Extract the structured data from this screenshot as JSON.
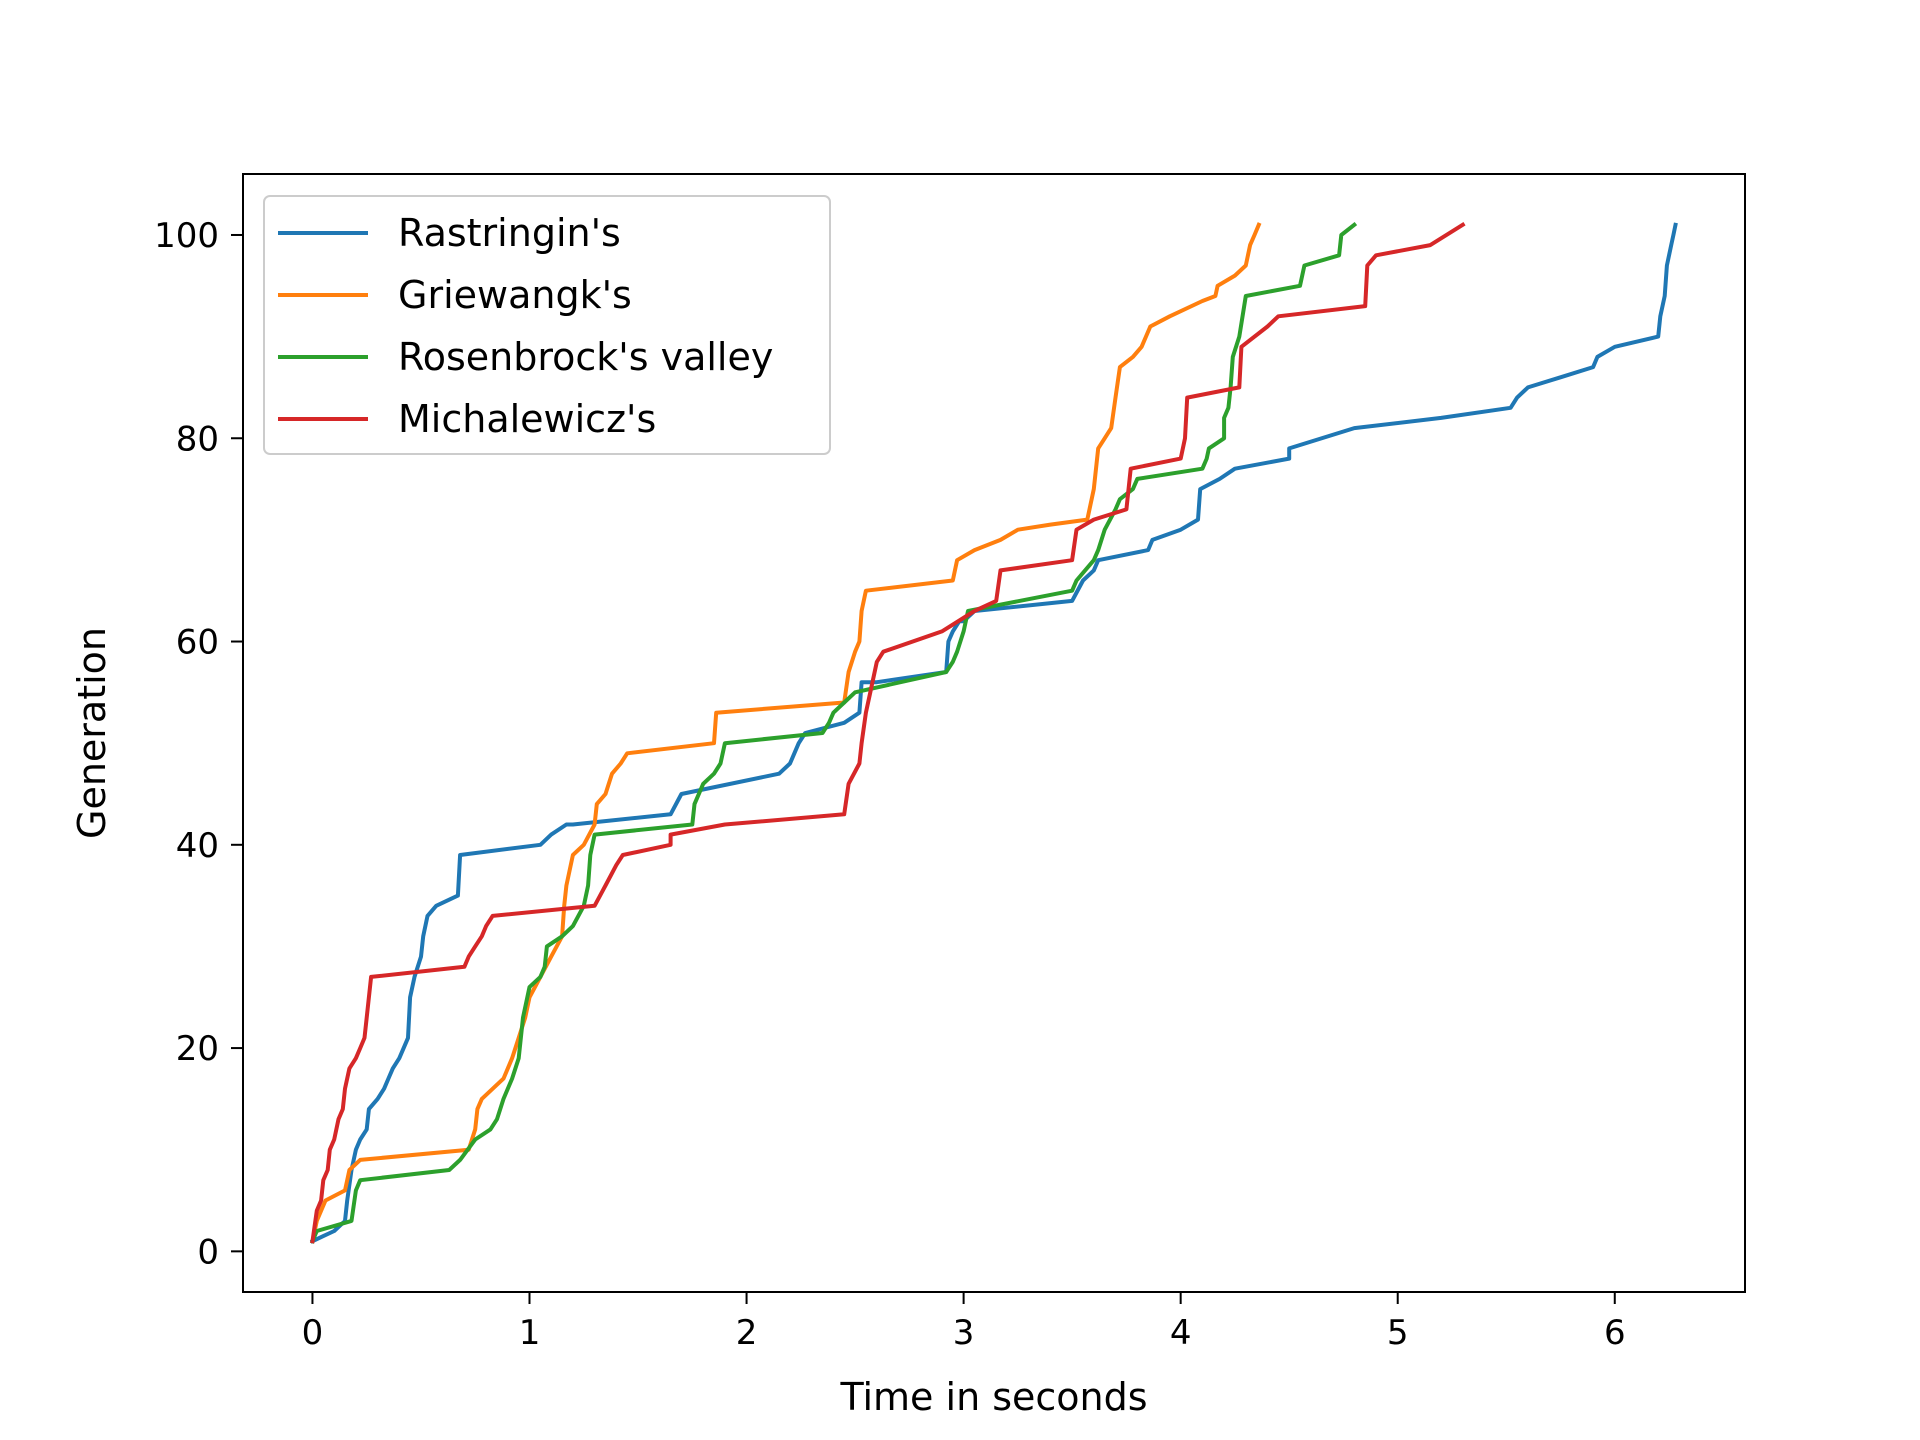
{
  "chart_data": {
    "type": "line",
    "title": "",
    "xlabel": "Time in seconds",
    "ylabel": "Generation",
    "xlim": [
      -0.32,
      6.6
    ],
    "ylim": [
      -4,
      106
    ],
    "xticks": [
      "0",
      "1",
      "2",
      "3",
      "4",
      "5",
      "6"
    ],
    "yticks": [
      "0",
      "20",
      "40",
      "60",
      "80",
      "100"
    ],
    "grid": false,
    "legend_position": "top-left",
    "series": [
      {
        "name": "Rastringin's",
        "color": "#1f77b4",
        "points": [
          [
            0.0,
            1
          ],
          [
            0.05,
            1.5
          ],
          [
            0.1,
            2
          ],
          [
            0.15,
            3
          ],
          [
            0.16,
            5
          ],
          [
            0.18,
            8
          ],
          [
            0.2,
            10
          ],
          [
            0.22,
            11
          ],
          [
            0.25,
            12
          ],
          [
            0.26,
            14
          ],
          [
            0.3,
            15
          ],
          [
            0.33,
            16
          ],
          [
            0.35,
            17
          ],
          [
            0.37,
            18
          ],
          [
            0.4,
            19
          ],
          [
            0.44,
            21
          ],
          [
            0.45,
            25
          ],
          [
            0.47,
            27
          ],
          [
            0.5,
            29
          ],
          [
            0.51,
            31
          ],
          [
            0.53,
            33
          ],
          [
            0.57,
            34
          ],
          [
            0.67,
            35
          ],
          [
            0.68,
            39
          ],
          [
            1.05,
            40
          ],
          [
            1.1,
            41
          ],
          [
            1.17,
            42
          ],
          [
            1.2,
            42
          ],
          [
            1.65,
            43
          ],
          [
            1.7,
            45
          ],
          [
            2.15,
            47
          ],
          [
            2.2,
            48
          ],
          [
            2.24,
            50
          ],
          [
            2.27,
            51
          ],
          [
            2.45,
            52
          ],
          [
            2.52,
            53
          ],
          [
            2.53,
            56
          ],
          [
            2.6,
            56
          ],
          [
            2.92,
            57
          ],
          [
            2.93,
            60
          ],
          [
            2.95,
            61
          ],
          [
            2.98,
            62
          ],
          [
            3.0,
            62
          ],
          [
            3.05,
            63
          ],
          [
            3.5,
            64
          ],
          [
            3.55,
            66
          ],
          [
            3.6,
            67
          ],
          [
            3.62,
            68
          ],
          [
            3.85,
            69
          ],
          [
            3.87,
            70
          ],
          [
            4.0,
            71
          ],
          [
            4.08,
            72
          ],
          [
            4.09,
            75
          ],
          [
            4.18,
            76
          ],
          [
            4.25,
            77
          ],
          [
            4.5,
            78
          ],
          [
            4.5,
            79
          ],
          [
            4.8,
            81
          ],
          [
            5.2,
            82
          ],
          [
            5.52,
            83
          ],
          [
            5.55,
            84
          ],
          [
            5.6,
            85
          ],
          [
            5.75,
            86
          ],
          [
            5.9,
            87
          ],
          [
            5.92,
            88
          ],
          [
            6.0,
            89
          ],
          [
            6.2,
            90
          ],
          [
            6.21,
            92
          ],
          [
            6.23,
            94
          ],
          [
            6.24,
            97
          ],
          [
            6.26,
            99
          ],
          [
            6.27,
            100
          ],
          [
            6.28,
            101
          ]
        ]
      },
      {
        "name": "Griewangk's",
        "color": "#ff7f0e",
        "points": [
          [
            0.0,
            1
          ],
          [
            0.02,
            3
          ],
          [
            0.04,
            4
          ],
          [
            0.06,
            5
          ],
          [
            0.15,
            6
          ],
          [
            0.17,
            8
          ],
          [
            0.22,
            9
          ],
          [
            0.72,
            10
          ],
          [
            0.75,
            12
          ],
          [
            0.76,
            14
          ],
          [
            0.78,
            15
          ],
          [
            0.88,
            17
          ],
          [
            0.92,
            19
          ],
          [
            0.95,
            21
          ],
          [
            0.98,
            23
          ],
          [
            1.0,
            25
          ],
          [
            1.05,
            27
          ],
          [
            1.1,
            29
          ],
          [
            1.15,
            31
          ],
          [
            1.16,
            34
          ],
          [
            1.17,
            36
          ],
          [
            1.2,
            39
          ],
          [
            1.25,
            40
          ],
          [
            1.3,
            42
          ],
          [
            1.31,
            44
          ],
          [
            1.35,
            45
          ],
          [
            1.38,
            47
          ],
          [
            1.42,
            48
          ],
          [
            1.45,
            49
          ],
          [
            1.85,
            50
          ],
          [
            1.86,
            53
          ],
          [
            2.45,
            54
          ],
          [
            2.47,
            57
          ],
          [
            2.5,
            59
          ],
          [
            2.52,
            60
          ],
          [
            2.53,
            63
          ],
          [
            2.55,
            65
          ],
          [
            2.95,
            66
          ],
          [
            2.97,
            68
          ],
          [
            3.05,
            69
          ],
          [
            3.17,
            70
          ],
          [
            3.25,
            71
          ],
          [
            3.4,
            71.5
          ],
          [
            3.57,
            72
          ],
          [
            3.6,
            75
          ],
          [
            3.62,
            79
          ],
          [
            3.65,
            80
          ],
          [
            3.68,
            81
          ],
          [
            3.7,
            84
          ],
          [
            3.72,
            87
          ],
          [
            3.78,
            88
          ],
          [
            3.82,
            89
          ],
          [
            3.86,
            91
          ],
          [
            3.95,
            92
          ],
          [
            4.1,
            93.5
          ],
          [
            4.16,
            94
          ],
          [
            4.17,
            95
          ],
          [
            4.25,
            96
          ],
          [
            4.3,
            97
          ],
          [
            4.32,
            99
          ],
          [
            4.34,
            100
          ],
          [
            4.36,
            101
          ]
        ]
      },
      {
        "name": "Rosenbrock's valley",
        "color": "#2ca02c",
        "points": [
          [
            0.0,
            1
          ],
          [
            0.02,
            2
          ],
          [
            0.18,
            3
          ],
          [
            0.2,
            6
          ],
          [
            0.22,
            7
          ],
          [
            0.63,
            8
          ],
          [
            0.68,
            9
          ],
          [
            0.75,
            11
          ],
          [
            0.82,
            12
          ],
          [
            0.85,
            13
          ],
          [
            0.88,
            15
          ],
          [
            0.92,
            17
          ],
          [
            0.95,
            19
          ],
          [
            0.97,
            23
          ],
          [
            1.0,
            26
          ],
          [
            1.05,
            27
          ],
          [
            1.07,
            28
          ],
          [
            1.08,
            30
          ],
          [
            1.15,
            31
          ],
          [
            1.2,
            32
          ],
          [
            1.25,
            34
          ],
          [
            1.27,
            36
          ],
          [
            1.28,
            39
          ],
          [
            1.3,
            41
          ],
          [
            1.75,
            42
          ],
          [
            1.76,
            44
          ],
          [
            1.8,
            46
          ],
          [
            1.85,
            47
          ],
          [
            1.88,
            48
          ],
          [
            1.9,
            50
          ],
          [
            2.35,
            51
          ],
          [
            2.38,
            52
          ],
          [
            2.4,
            53
          ],
          [
            2.45,
            54
          ],
          [
            2.5,
            55
          ],
          [
            2.92,
            57
          ],
          [
            2.95,
            58
          ],
          [
            2.97,
            59
          ],
          [
            3.0,
            61
          ],
          [
            3.02,
            63
          ],
          [
            3.5,
            65
          ],
          [
            3.52,
            66
          ],
          [
            3.6,
            68
          ],
          [
            3.62,
            69
          ],
          [
            3.65,
            71
          ],
          [
            3.7,
            73
          ],
          [
            3.72,
            74
          ],
          [
            3.78,
            75
          ],
          [
            3.8,
            76
          ],
          [
            4.1,
            77
          ],
          [
            4.12,
            78
          ],
          [
            4.13,
            79
          ],
          [
            4.2,
            80
          ],
          [
            4.2,
            82
          ],
          [
            4.22,
            83
          ],
          [
            4.23,
            85
          ],
          [
            4.24,
            88
          ],
          [
            4.27,
            90
          ],
          [
            4.3,
            94
          ],
          [
            4.55,
            95
          ],
          [
            4.57,
            97
          ],
          [
            4.73,
            98
          ],
          [
            4.74,
            100
          ],
          [
            4.8,
            101
          ]
        ]
      },
      {
        "name": "Michalewicz's",
        "color": "#d62728",
        "points": [
          [
            0.0,
            1
          ],
          [
            0.02,
            4
          ],
          [
            0.04,
            5
          ],
          [
            0.05,
            7
          ],
          [
            0.07,
            8
          ],
          [
            0.08,
            10
          ],
          [
            0.1,
            11
          ],
          [
            0.12,
            13
          ],
          [
            0.14,
            14
          ],
          [
            0.15,
            16
          ],
          [
            0.17,
            18
          ],
          [
            0.2,
            19
          ],
          [
            0.22,
            20
          ],
          [
            0.24,
            21
          ],
          [
            0.25,
            23
          ],
          [
            0.27,
            27
          ],
          [
            0.7,
            28
          ],
          [
            0.72,
            29
          ],
          [
            0.75,
            30
          ],
          [
            0.78,
            31
          ],
          [
            0.8,
            32
          ],
          [
            0.83,
            33
          ],
          [
            1.3,
            34
          ],
          [
            1.35,
            36
          ],
          [
            1.4,
            38
          ],
          [
            1.43,
            39
          ],
          [
            1.65,
            40
          ],
          [
            1.65,
            41
          ],
          [
            1.9,
            42
          ],
          [
            2.45,
            43
          ],
          [
            2.47,
            46
          ],
          [
            2.52,
            48
          ],
          [
            2.53,
            50
          ],
          [
            2.55,
            53
          ],
          [
            2.57,
            55
          ],
          [
            2.6,
            58
          ],
          [
            2.63,
            59
          ],
          [
            2.9,
            61
          ],
          [
            3.05,
            63
          ],
          [
            3.15,
            64
          ],
          [
            3.17,
            67
          ],
          [
            3.5,
            68
          ],
          [
            3.52,
            71
          ],
          [
            3.6,
            72
          ],
          [
            3.75,
            73
          ],
          [
            3.77,
            77
          ],
          [
            4.0,
            78
          ],
          [
            4.02,
            80
          ],
          [
            4.03,
            84
          ],
          [
            4.27,
            85
          ],
          [
            4.28,
            89
          ],
          [
            4.4,
            91
          ],
          [
            4.45,
            92
          ],
          [
            4.85,
            93
          ],
          [
            4.86,
            97
          ],
          [
            4.9,
            98
          ],
          [
            5.15,
            99
          ],
          [
            5.3,
            101
          ]
        ]
      }
    ]
  }
}
